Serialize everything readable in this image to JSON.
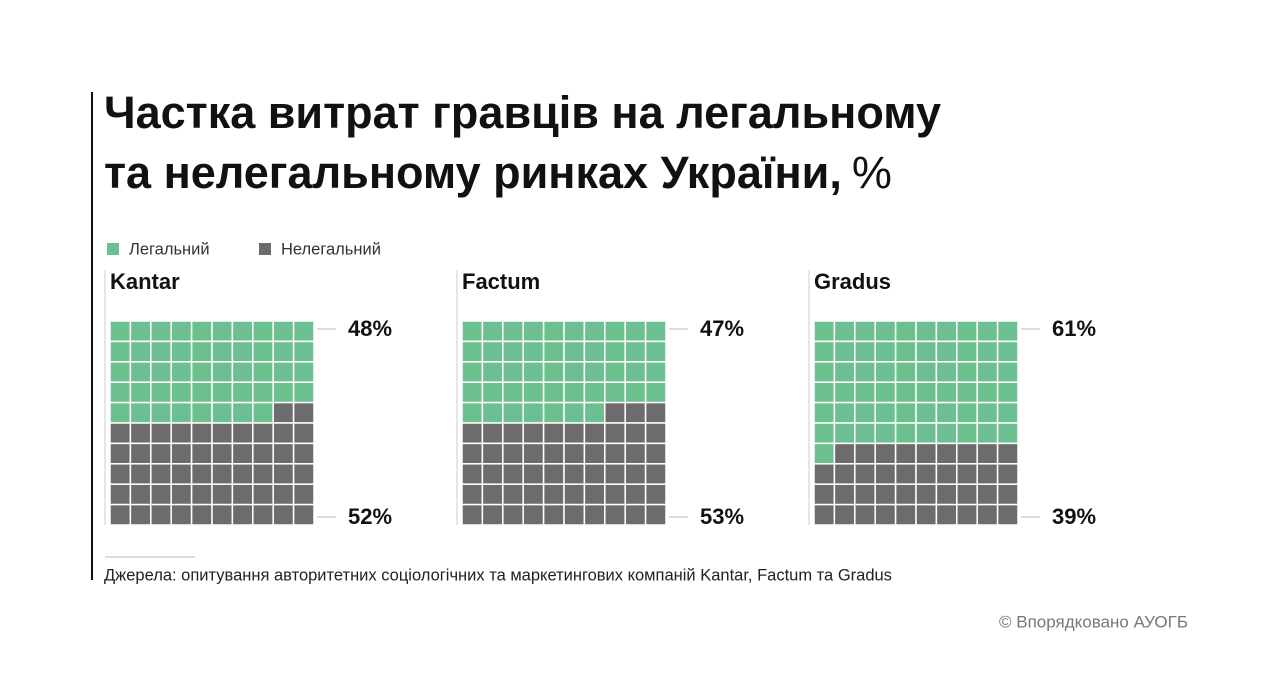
{
  "title": "Частка витрат гравців на легальному",
  "title_line2": "та нелегальному ринках України,",
  "title_unit": "%",
  "source": "Джерела: опитування авторитетних соціологічних та маркетингових компаній Kantar, Factum та Gradus",
  "credit": "© Впорядковано АУОГБ",
  "chart_data": [
    {
      "type": "waffle",
      "title": "Kantar",
      "series": [
        {
          "name": "Легальний",
          "color": "#6cbf8e",
          "values": [
            48
          ],
          "value_labels": [
            "48%"
          ]
        },
        {
          "name": "Нелегальний",
          "color": "#6e6b6c",
          "values": [
            52
          ],
          "value_labels": [
            "52%"
          ]
        }
      ]
    },
    {
      "type": "waffle",
      "title": "Factum",
      "series": [
        {
          "name": "Легальний",
          "color": "#6cbf8e",
          "values": [
            47
          ],
          "value_labels": [
            "47%"
          ]
        },
        {
          "name": "Нелегальний",
          "color": "#6e6b6c",
          "values": [
            53
          ],
          "value_labels": [
            "53%"
          ]
        }
      ]
    },
    {
      "type": "waffle",
      "title": "Gradus",
      "series": [
        {
          "name": "Легальний",
          "color": "#6cbf8e",
          "values": [
            61
          ],
          "value_labels": [
            "61%"
          ]
        },
        {
          "name": "Нелегальний",
          "color": "#6e6b6c",
          "values": [
            39
          ],
          "value_labels": [
            "39%"
          ]
        }
      ]
    }
  ]
}
